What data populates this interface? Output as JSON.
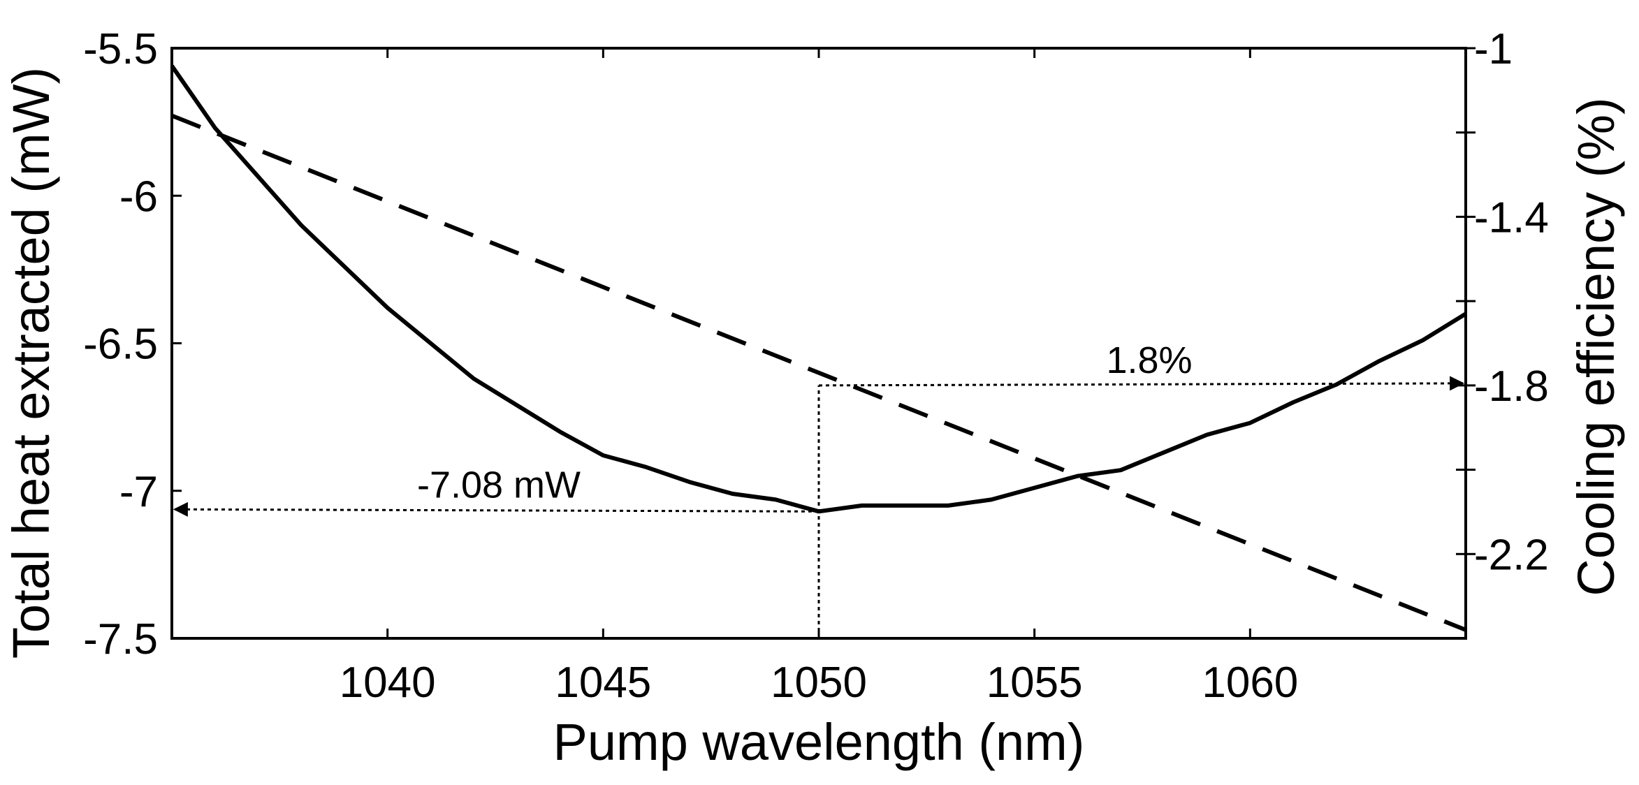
{
  "chart_data": {
    "type": "line",
    "xlabel": "Pump wavelength (nm)",
    "ylabel": "Total heat extracted (mW)",
    "y2label": "Cooling efficiency (%)",
    "xlim": [
      1035,
      1065
    ],
    "ylim": [
      -7.5,
      -5.5
    ],
    "y2lim": [
      -2.4,
      -1.0
    ],
    "xticks": [
      1040,
      1045,
      1050,
      1055,
      1060
    ],
    "yticks": [
      -5.5,
      -6,
      -6.5,
      -7,
      -7.5
    ],
    "yticklabels": [
      "-5.5",
      "-6",
      "-6.5",
      "-7",
      "-7.5"
    ],
    "y2ticks": [
      -1.0,
      -1.2,
      -1.4,
      -1.6,
      -1.8,
      -2.0,
      -2.2
    ],
    "y2ticklabels": [
      "-1",
      "",
      "-1.4",
      "",
      "-1.8",
      "",
      "-2.2"
    ],
    "grid": false,
    "series": [
      {
        "axis": "left",
        "style": "solid",
        "x": [
          1035,
          1036,
          1038,
          1040,
          1042,
          1044,
          1045,
          1046,
          1047,
          1048,
          1049,
          1050,
          1051,
          1052,
          1053,
          1054,
          1055,
          1056,
          1057,
          1058,
          1059,
          1060,
          1061,
          1062,
          1063,
          1064,
          1065
        ],
        "values": [
          -5.56,
          -5.77,
          -6.1,
          -6.38,
          -6.62,
          -6.8,
          -6.88,
          -6.92,
          -6.97,
          -7.01,
          -7.03,
          -7.07,
          -7.05,
          -7.05,
          -7.05,
          -7.03,
          -6.99,
          -6.95,
          -6.93,
          -6.87,
          -6.81,
          -6.77,
          -6.7,
          -6.64,
          -6.56,
          -6.49,
          -6.4
        ]
      },
      {
        "axis": "right",
        "style": "dashed",
        "x": [
          1035,
          1065
        ],
        "values": [
          -1.16,
          -2.38
        ]
      }
    ],
    "annotations": [
      {
        "text": "-7.08 mW",
        "x": 1050,
        "y": -7.07,
        "axis": "left",
        "direction": "left"
      },
      {
        "text": "1.8%",
        "x": 1050,
        "y": -1.8,
        "axis": "right",
        "direction": "right"
      }
    ]
  }
}
